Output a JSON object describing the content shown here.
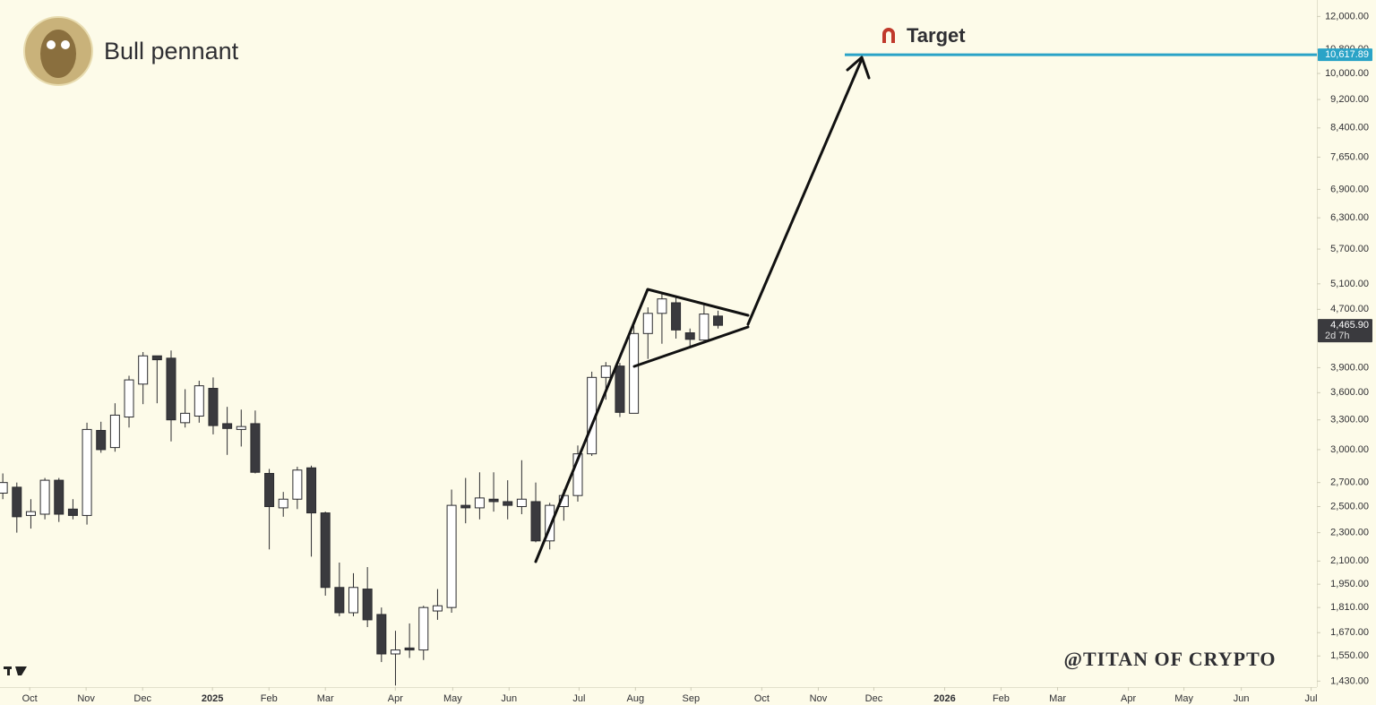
{
  "chart_data": {
    "type": "candlestick",
    "title": "Bull pennant",
    "annotation": "Target",
    "watermark": "@TITAN OF CRYPTO",
    "log_scale": true,
    "up_color": "#ffffff",
    "down_color": "#3a3a3e",
    "x": [
      0,
      1,
      2,
      3,
      4,
      5,
      6,
      7,
      8,
      9,
      10,
      11,
      12,
      13,
      14,
      15,
      16,
      17,
      18,
      19,
      20,
      21,
      22,
      23,
      24,
      25,
      26,
      27,
      28,
      29,
      30,
      31,
      32,
      33,
      34,
      35,
      36,
      37,
      38,
      39,
      40,
      41,
      42,
      43,
      44,
      45,
      46,
      47,
      48,
      49,
      50,
      51
    ],
    "open": [
      2610,
      2660,
      2430,
      2440,
      2720,
      2480,
      2430,
      3190,
      3020,
      3330,
      3700,
      4050,
      4020,
      3270,
      3340,
      3650,
      3260,
      3200,
      3260,
      2780,
      2490,
      2560,
      2830,
      2450,
      1930,
      1780,
      1920,
      1770,
      1560,
      1590,
      1580,
      1790,
      1810,
      2510,
      2490,
      2560,
      2540,
      2500,
      2540,
      2240,
      2500,
      2590,
      2960,
      3780,
      3920,
      3370,
      4350,
      4640,
      4800,
      4360,
      4260,
      4600
    ],
    "high": [
      2780,
      2700,
      2560,
      2740,
      2740,
      2560,
      3270,
      3280,
      3480,
      3800,
      4100,
      4050,
      4120,
      3640,
      3740,
      3780,
      3440,
      3410,
      3400,
      2820,
      2620,
      2840,
      2850,
      2460,
      2090,
      2020,
      2060,
      1810,
      1680,
      1720,
      1820,
      1920,
      2640,
      2740,
      2790,
      2790,
      2720,
      2900,
      2700,
      2530,
      2640,
      3040,
      3850,
      3970,
      3960,
      4460,
      4730,
      4960,
      4890,
      4420,
      4770,
      4680
    ],
    "low": [
      2560,
      2300,
      2330,
      2400,
      2380,
      2400,
      2360,
      2970,
      2980,
      3220,
      3470,
      3480,
      3080,
      3220,
      3270,
      3150,
      2950,
      3030,
      2780,
      2180,
      2420,
      2480,
      2130,
      1880,
      1760,
      1760,
      1700,
      1520,
      1410,
      1540,
      1530,
      1740,
      1780,
      2370,
      2400,
      2460,
      2400,
      2440,
      2230,
      2180,
      2390,
      2540,
      2940,
      3520,
      3330,
      3380,
      4010,
      4210,
      4280,
      4180,
      4250,
      4420
    ],
    "close": [
      2700,
      2420,
      2460,
      2720,
      2440,
      2430,
      3200,
      3000,
      3350,
      3750,
      4050,
      4000,
      3300,
      3370,
      3680,
      3240,
      3210,
      3230,
      2790,
      2500,
      2560,
      2810,
      2450,
      1930,
      1780,
      1930,
      1740,
      1560,
      1580,
      1580,
      1810,
      1820,
      2510,
      2490,
      2570,
      2540,
      2510,
      2560,
      2240,
      2510,
      2590,
      2960,
      3780,
      3920,
      3380,
      4350,
      4640,
      4860,
      4400,
      4270,
      4630,
      4465.9
    ],
    "xlim": [
      -0.2,
      93.7
    ],
    "xticks": [
      {
        "value": 1.92,
        "label": "Oct"
      },
      {
        "value": 5.94,
        "label": "Nov"
      },
      {
        "value": 9.97,
        "label": "Dec"
      },
      {
        "value": 14.95,
        "label": "2025"
      },
      {
        "value": 18.98,
        "label": "Feb"
      },
      {
        "value": 23.0,
        "label": "Mar"
      },
      {
        "value": 27.99,
        "label": "Apr"
      },
      {
        "value": 32.08,
        "label": "May"
      },
      {
        "value": 36.1,
        "label": "Jun"
      },
      {
        "value": 41.09,
        "label": "Jul"
      },
      {
        "value": 45.11,
        "label": "Aug"
      },
      {
        "value": 49.07,
        "label": "Sep"
      },
      {
        "value": 54.12,
        "label": "Oct"
      },
      {
        "value": 58.15,
        "label": "Nov"
      },
      {
        "value": 62.11,
        "label": "Dec"
      },
      {
        "value": 67.16,
        "label": "2026"
      },
      {
        "value": 71.18,
        "label": "Feb"
      },
      {
        "value": 75.21,
        "label": "Mar"
      },
      {
        "value": 80.26,
        "label": "Apr"
      },
      {
        "value": 84.22,
        "label": "May"
      },
      {
        "value": 88.31,
        "label": "Jun"
      },
      {
        "value": 93.29,
        "label": "Jul"
      }
    ],
    "ylim": [
      1403,
      12650
    ],
    "yticks": [
      {
        "value": 12000,
        "label": "12,000.00"
      },
      {
        "value": 10800,
        "label": "10,800.00"
      },
      {
        "value": 10000,
        "label": "10,000.00"
      },
      {
        "value": 9200,
        "label": "9,200.00"
      },
      {
        "value": 8400,
        "label": "8,400.00"
      },
      {
        "value": 7650,
        "label": "7,650.00"
      },
      {
        "value": 6900,
        "label": "6,900.00"
      },
      {
        "value": 6300,
        "label": "6,300.00"
      },
      {
        "value": 5700,
        "label": "5,700.00"
      },
      {
        "value": 5100,
        "label": "5,100.00"
      },
      {
        "value": 4700,
        "label": "4,700.00"
      },
      {
        "value": 3900,
        "label": "3,900.00"
      },
      {
        "value": 3600,
        "label": "3,600.00"
      },
      {
        "value": 3300,
        "label": "3,300.00"
      },
      {
        "value": 3000,
        "label": "3,000.00"
      },
      {
        "value": 2700,
        "label": "2,700.00"
      },
      {
        "value": 2500,
        "label": "2,500.00"
      },
      {
        "value": 2300,
        "label": "2,300.00"
      },
      {
        "value": 2100,
        "label": "2,100.00"
      },
      {
        "value": 1950,
        "label": "1,950.00"
      },
      {
        "value": 1810,
        "label": "1,810.00"
      },
      {
        "value": 1670,
        "label": "1,670.00"
      },
      {
        "value": 1550,
        "label": "1,550.00"
      },
      {
        "value": 1430,
        "label": "1,430.00"
      }
    ],
    "price_lines": [
      {
        "value": 10617.89,
        "label": "10,617.89",
        "color": "#2aa3c7"
      },
      {
        "value": 4465.9,
        "label": "4,465.90",
        "sublabel": "2d 7h",
        "color": "#3a3a3e"
      }
    ]
  }
}
